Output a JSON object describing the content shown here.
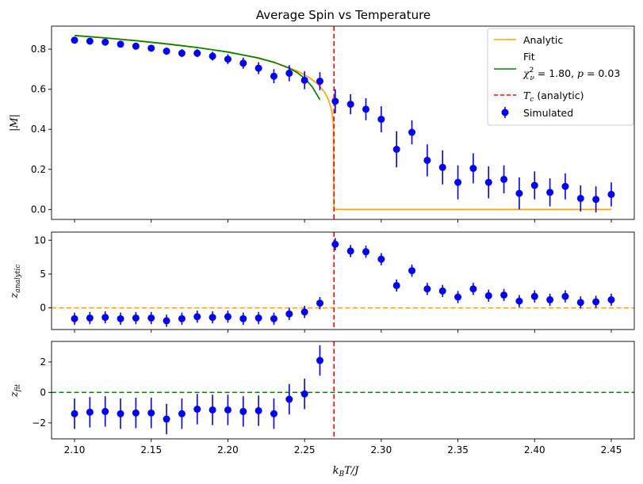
{
  "chart_data": [
    {
      "type": "scatter",
      "title": "Average Spin vs Temperature",
      "ylabel": "|M|",
      "xlabel": "",
      "xlim": [
        2.085,
        2.465
      ],
      "ylim": [
        -0.05,
        0.915
      ],
      "yticks": [
        0.0,
        0.2,
        0.4,
        0.6,
        0.8
      ],
      "grid": false,
      "legend_position": "top-right",
      "series": [
        {
          "name": "Simulated",
          "kind": "errorbar",
          "color": "#0000ff",
          "x": [
            2.1,
            2.11,
            2.12,
            2.13,
            2.14,
            2.15,
            2.16,
            2.17,
            2.18,
            2.19,
            2.2,
            2.21,
            2.22,
            2.23,
            2.24,
            2.25,
            2.26,
            2.27,
            2.28,
            2.29,
            2.3,
            2.31,
            2.32,
            2.33,
            2.34,
            2.35,
            2.36,
            2.37,
            2.38,
            2.39,
            2.4,
            2.41,
            2.42,
            2.43,
            2.44,
            2.45
          ],
          "y": [
            0.845,
            0.84,
            0.835,
            0.825,
            0.815,
            0.805,
            0.79,
            0.78,
            0.78,
            0.765,
            0.75,
            0.73,
            0.705,
            0.665,
            0.68,
            0.645,
            0.64,
            0.54,
            0.525,
            0.5,
            0.45,
            0.3,
            0.385,
            0.245,
            0.21,
            0.135,
            0.205,
            0.135,
            0.15,
            0.08,
            0.12,
            0.085,
            0.115,
            0.055,
            0.05,
            0.075
          ],
          "yerr": [
            0.015,
            0.015,
            0.015,
            0.015,
            0.015,
            0.015,
            0.018,
            0.02,
            0.02,
            0.022,
            0.025,
            0.028,
            0.03,
            0.035,
            0.04,
            0.045,
            0.045,
            0.06,
            0.05,
            0.055,
            0.065,
            0.09,
            0.06,
            0.08,
            0.085,
            0.085,
            0.075,
            0.08,
            0.07,
            0.08,
            0.07,
            0.07,
            0.065,
            0.065,
            0.065,
            0.06
          ]
        },
        {
          "name": "Analytic",
          "kind": "line",
          "color": "#ffa500",
          "model": "onsager",
          "tc": 2.2692,
          "x_start": 2.1,
          "x_end": 2.45
        },
        {
          "name": "Fit",
          "kind": "line",
          "color": "#008000",
          "x": [
            2.1,
            2.12,
            2.14,
            2.16,
            2.18,
            2.2,
            2.22,
            2.23,
            2.24,
            2.245,
            2.25,
            2.255,
            2.26
          ],
          "y": [
            0.868,
            0.856,
            0.842,
            0.826,
            0.808,
            0.786,
            0.756,
            0.735,
            0.705,
            0.684,
            0.655,
            0.612,
            0.548
          ]
        }
      ],
      "fit_note_line1": "Fit",
      "fit_note_line2_chi": "χ",
      "fit_note_line2_sup": "2",
      "fit_note_line2_sub": "ν",
      "fit_note_line2_rest": " = 1.80, ",
      "fit_note_p": "p",
      "fit_note_p_value": " = 0.03",
      "vline": {
        "x": 2.2692,
        "color": "#ff0000",
        "label_main": "T",
        "label_sub": "c",
        "label_rest": " (analytic)"
      }
    },
    {
      "type": "scatter",
      "ylabel_main": "z",
      "ylabel_sub": "analytic",
      "ylim": [
        -3.2,
        11.2
      ],
      "yticks": [
        0,
        5,
        10
      ],
      "hline": {
        "y": 0,
        "color": "#ffa500"
      },
      "series": [
        {
          "kind": "errorbar",
          "color": "#0000ff",
          "x": [
            2.1,
            2.11,
            2.12,
            2.13,
            2.14,
            2.15,
            2.16,
            2.17,
            2.18,
            2.19,
            2.2,
            2.21,
            2.22,
            2.23,
            2.24,
            2.25,
            2.26,
            2.27,
            2.28,
            2.29,
            2.3,
            2.31,
            2.32,
            2.33,
            2.34,
            2.35,
            2.36,
            2.37,
            2.38,
            2.39,
            2.4,
            2.41,
            2.42,
            2.43,
            2.44,
            2.45
          ],
          "y": [
            -1.6,
            -1.5,
            -1.4,
            -1.6,
            -1.5,
            -1.5,
            -1.9,
            -1.6,
            -1.3,
            -1.4,
            -1.3,
            -1.6,
            -1.5,
            -1.6,
            -0.9,
            -0.6,
            0.7,
            9.4,
            8.4,
            8.3,
            7.2,
            3.3,
            5.5,
            2.8,
            2.5,
            1.6,
            2.8,
            1.8,
            1.9,
            1.0,
            1.7,
            1.2,
            1.7,
            0.8,
            0.9,
            1.2
          ],
          "yerr": [
            0.9,
            0.9,
            0.9,
            0.9,
            0.9,
            0.9,
            0.9,
            0.9,
            0.9,
            0.9,
            0.9,
            0.9,
            0.9,
            0.9,
            0.9,
            0.9,
            0.9,
            0.9,
            0.9,
            0.9,
            0.9,
            0.9,
            0.9,
            0.9,
            0.9,
            0.9,
            0.9,
            0.9,
            0.9,
            0.9,
            0.9,
            0.9,
            0.9,
            0.9,
            0.9,
            0.9
          ]
        }
      ],
      "vline": {
        "x": 2.2692,
        "color": "#ff0000"
      }
    },
    {
      "type": "scatter",
      "ylabel_main": "z",
      "ylabel_sub": "fit",
      "xlabel_main": "k",
      "xlabel_sub": "B",
      "xlabel_rest": "T/J",
      "ylim": [
        -3.05,
        3.35
      ],
      "yticks": [
        -2,
        0,
        2
      ],
      "xticks": [
        2.1,
        2.15,
        2.2,
        2.25,
        2.3,
        2.35,
        2.4,
        2.45
      ],
      "hline": {
        "y": 0,
        "color": "#008000"
      },
      "series": [
        {
          "kind": "errorbar",
          "color": "#0000ff",
          "x": [
            2.1,
            2.11,
            2.12,
            2.13,
            2.14,
            2.15,
            2.16,
            2.17,
            2.18,
            2.19,
            2.2,
            2.21,
            2.22,
            2.23,
            2.24,
            2.25,
            2.26
          ],
          "y": [
            -1.4,
            -1.3,
            -1.25,
            -1.4,
            -1.35,
            -1.35,
            -1.75,
            -1.4,
            -1.1,
            -1.15,
            -1.15,
            -1.25,
            -1.2,
            -1.4,
            -0.45,
            -0.1,
            2.1
          ],
          "yerr": [
            1.0,
            1.0,
            1.0,
            1.0,
            1.0,
            1.0,
            1.0,
            1.0,
            1.0,
            1.0,
            1.0,
            1.0,
            1.0,
            1.0,
            1.0,
            1.0,
            1.0
          ]
        }
      ],
      "vline": {
        "x": 2.2692,
        "color": "#ff0000"
      }
    }
  ]
}
